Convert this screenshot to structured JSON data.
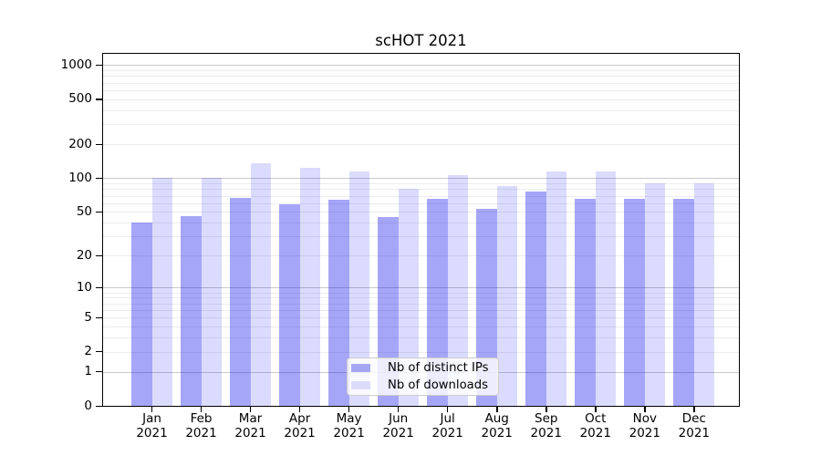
{
  "title": "scHOT 2021",
  "legend": {
    "items": [
      {
        "label": "Nb of distinct IPs",
        "swatch_color": "#a6a6f4"
      },
      {
        "label": "Nb of downloads",
        "swatch_color": "#dcdcfa"
      }
    ]
  },
  "chart_data": {
    "type": "bar",
    "title": "scHOT 2021",
    "categories": [
      {
        "month": "Jan",
        "year": "2021"
      },
      {
        "month": "Feb",
        "year": "2021"
      },
      {
        "month": "Mar",
        "year": "2021"
      },
      {
        "month": "Apr",
        "year": "2021"
      },
      {
        "month": "May",
        "year": "2021"
      },
      {
        "month": "Jun",
        "year": "2021"
      },
      {
        "month": "Jul",
        "year": "2021"
      },
      {
        "month": "Aug",
        "year": "2021"
      },
      {
        "month": "Sep",
        "year": "2021"
      },
      {
        "month": "Oct",
        "year": "2021"
      },
      {
        "month": "Nov",
        "year": "2021"
      },
      {
        "month": "Dec",
        "year": "2021"
      }
    ],
    "series": [
      {
        "name": "Nb of distinct IPs",
        "fill": "rgba(0,0,238,0.35)",
        "solid": "#a6a6f4",
        "values": [
          40,
          46,
          67,
          59,
          64,
          45,
          66,
          53,
          76,
          66,
          66,
          65
        ]
      },
      {
        "name": "Nb of downloads",
        "fill": "rgba(0,0,238,0.14)",
        "solid": "#dcdcfa",
        "values": [
          100,
          101,
          135,
          125,
          115,
          80,
          106,
          86,
          116,
          115,
          90,
          90
        ]
      }
    ],
    "y_axis": {
      "scale": "log10(1+v)",
      "ticks": [
        1000,
        500,
        200,
        100,
        50,
        20,
        10,
        5,
        2,
        1,
        0
      ],
      "range": [
        0,
        1250
      ]
    },
    "grid": {
      "show": true,
      "major_values": [
        1,
        10,
        100,
        1000
      ],
      "minor_values": [
        2,
        3,
        4,
        5,
        6,
        7,
        8,
        9,
        20,
        30,
        40,
        50,
        60,
        70,
        80,
        90,
        200,
        300,
        400,
        500,
        600,
        700,
        800,
        900
      ],
      "major_color": "#c9c9c9",
      "minor_color": "#ececec"
    },
    "legend_position": "lower center",
    "xlabel": "",
    "ylabel": ""
  }
}
